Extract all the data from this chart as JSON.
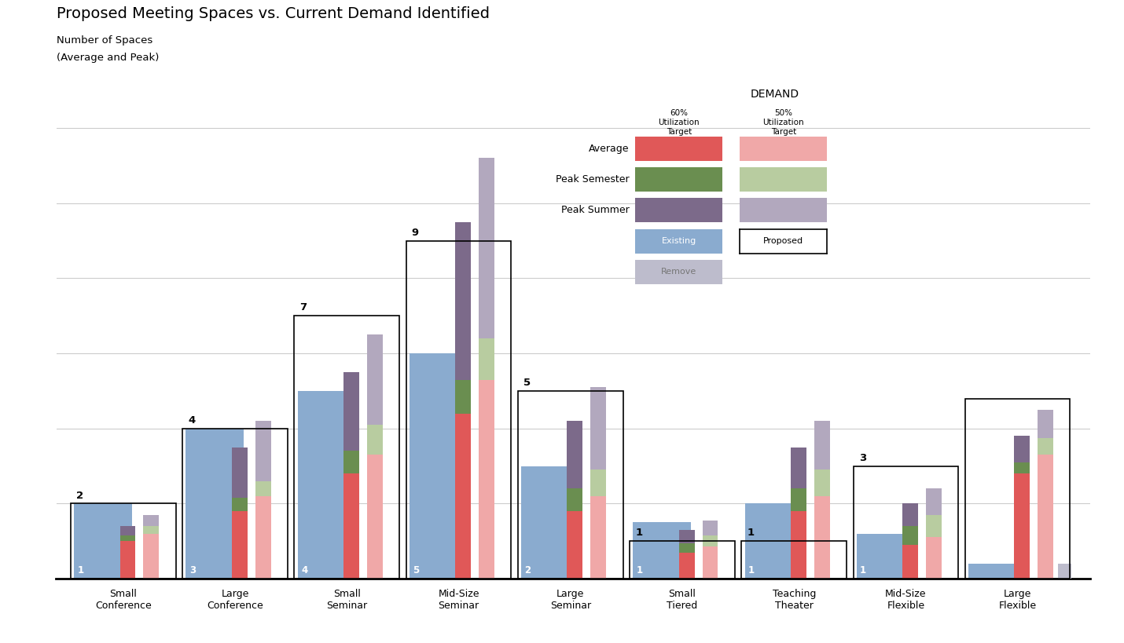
{
  "title": "Proposed Meeting Spaces vs. Current Demand Identified",
  "subtitle_line1": "Number of Spaces",
  "subtitle_line2": "(Average and Peak)",
  "categories": [
    "Small\nConference",
    "Large\nConference",
    "Small\nSeminar",
    "Mid-Size\nSeminar",
    "Large\nSeminar",
    "Small\nTiered",
    "Teaching\nTheater",
    "Mid-Size\nFlexible",
    "Large\nFlexible"
  ],
  "proposed": [
    2,
    4,
    7,
    9,
    5,
    1,
    1,
    3,
    null
  ],
  "existing_nums": [
    1,
    3,
    4,
    5,
    2,
    1,
    1,
    1,
    null
  ],
  "existing_bar_h": [
    2.0,
    4.0,
    5.0,
    6.0,
    3.0,
    1.5,
    2.0,
    1.2,
    0.4
  ],
  "remove_bar_h": [
    0.0,
    0.0,
    0.0,
    0.0,
    0.0,
    0.0,
    0.0,
    0.0,
    0.4
  ],
  "d60_avg": [
    1.0,
    1.8,
    2.8,
    4.4,
    1.8,
    0.7,
    1.8,
    0.9,
    2.8
  ],
  "d60_psem": [
    1.15,
    2.15,
    3.4,
    5.3,
    2.4,
    0.95,
    2.4,
    1.4,
    3.1
  ],
  "d60_psum": [
    1.4,
    3.5,
    5.5,
    9.5,
    4.2,
    1.3,
    3.5,
    2.0,
    3.8
  ],
  "d50_avg": [
    1.2,
    2.2,
    3.3,
    5.3,
    2.2,
    0.85,
    2.2,
    1.1,
    3.3
  ],
  "d50_psem": [
    1.4,
    2.6,
    4.1,
    6.4,
    2.9,
    1.15,
    2.9,
    1.7,
    3.75
  ],
  "d50_psum": [
    1.7,
    4.2,
    6.5,
    11.2,
    5.1,
    1.55,
    4.2,
    2.4,
    4.5
  ],
  "color_existing": "#8aabcf",
  "color_remove": "#bdbccc",
  "color_60_avg": "#e05858",
  "color_60_psem": "#6a8e50",
  "color_60_psum": "#7c6a8a",
  "color_50_avg": "#f0a8a8",
  "color_50_psem": "#b8cca0",
  "color_50_psum": "#b2a8be",
  "ylim_max": 12.5
}
